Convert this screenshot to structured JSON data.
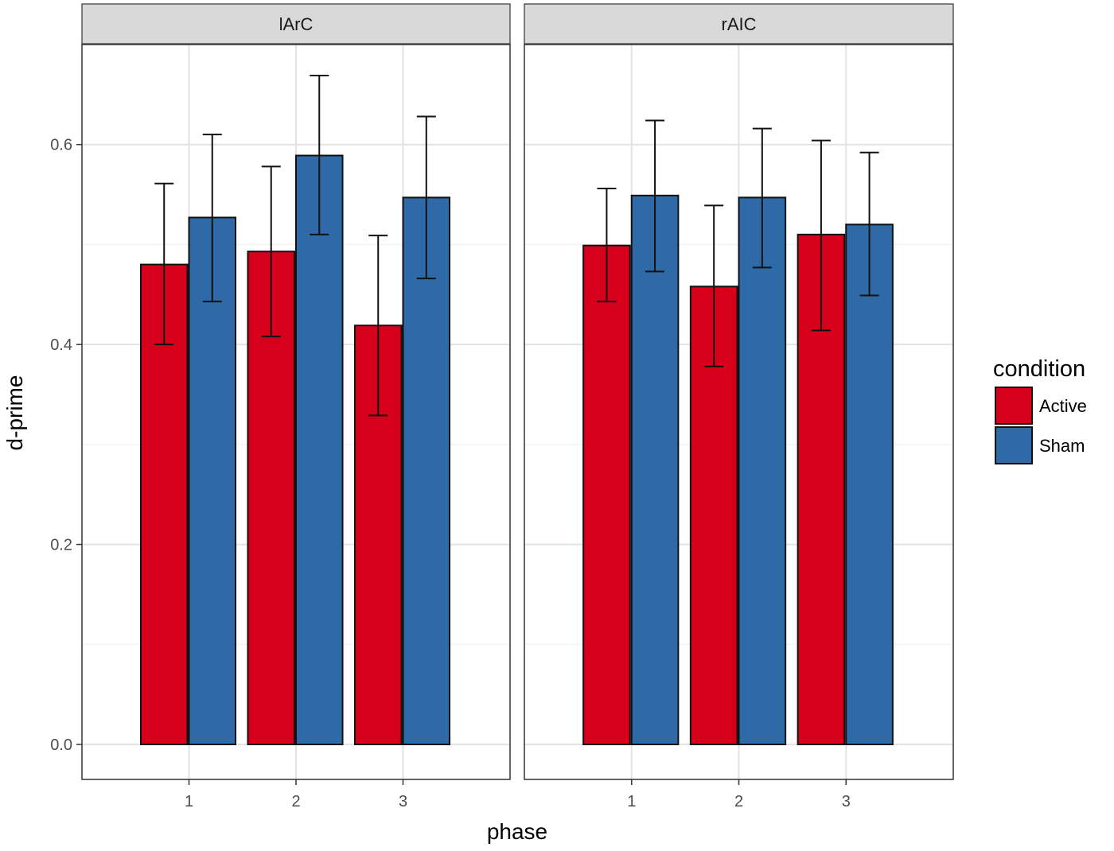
{
  "chart_data": {
    "type": "bar",
    "facet_variable": "region",
    "facets": [
      {
        "name": "lArC",
        "categories": [
          "1",
          "2",
          "3"
        ],
        "series": [
          {
            "name": "Active",
            "values": [
              0.48,
              0.493,
              0.419
            ],
            "error_low": [
              0.4,
              0.408,
              0.329
            ],
            "error_high": [
              0.561,
              0.578,
              0.509
            ]
          },
          {
            "name": "Sham",
            "values": [
              0.527,
              0.589,
              0.547
            ],
            "error_low": [
              0.443,
              0.51,
              0.466
            ],
            "error_high": [
              0.61,
              0.669,
              0.628
            ]
          }
        ]
      },
      {
        "name": "rAIC",
        "categories": [
          "1",
          "2",
          "3"
        ],
        "series": [
          {
            "name": "Active",
            "values": [
              0.499,
              0.458,
              0.51
            ],
            "error_low": [
              0.443,
              0.378,
              0.414
            ],
            "error_high": [
              0.556,
              0.539,
              0.604
            ]
          },
          {
            "name": "Sham",
            "values": [
              0.549,
              0.547,
              0.52
            ],
            "error_low": [
              0.473,
              0.477,
              0.449
            ],
            "error_high": [
              0.624,
              0.616,
              0.592
            ]
          }
        ]
      }
    ],
    "xlabel": "phase",
    "ylabel": "d-prime",
    "ylim": [
      -0.035,
      0.7
    ],
    "yticks": [
      0.0,
      0.2,
      0.4,
      0.6
    ],
    "ytick_labels": [
      "0.0",
      "0.2",
      "0.4",
      "0.6"
    ],
    "grid": true,
    "legend": {
      "title": "condition",
      "position": "right",
      "entries": [
        {
          "name": "Active",
          "color": "#d7001b"
        },
        {
          "name": "Sham",
          "color": "#2f6aa8"
        }
      ]
    },
    "colors": {
      "Active": "#d7001b",
      "Sham": "#2f6aa8"
    }
  }
}
